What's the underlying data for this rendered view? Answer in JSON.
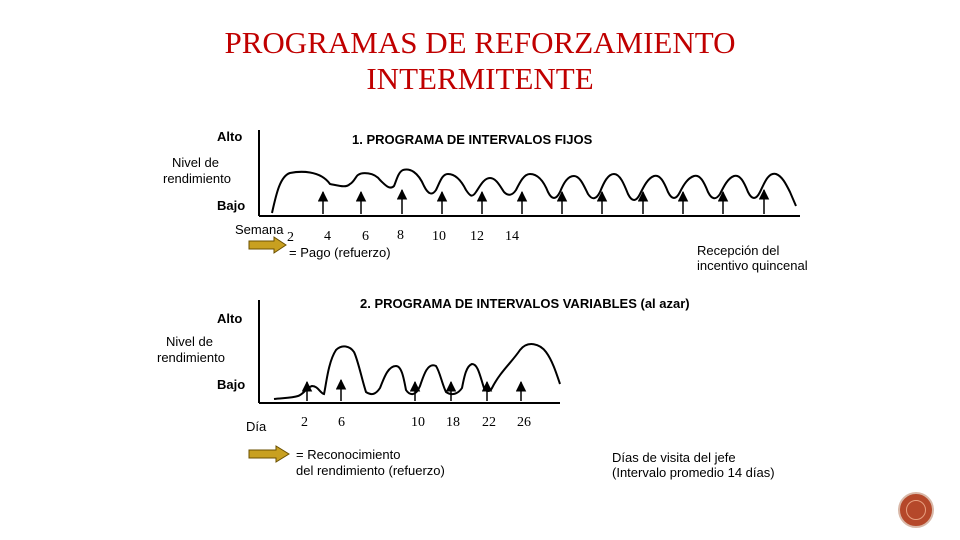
{
  "title": {
    "line1": "PROGRAMAS DE REFORZAMIENTO",
    "line2": "INTERMITENTE"
  },
  "fixed": {
    "heading": "1. PROGRAMA DE INTERVALOS FIJOS",
    "high_label": "Alto",
    "yaxis_label_1": "Nivel de",
    "yaxis_label_2": "rendimiento",
    "low_label": "Bajo",
    "xaxis_label": "Semana",
    "ticks": [
      "2",
      "4",
      "6",
      "8",
      "10",
      "12",
      "14"
    ],
    "legend_arrow_text": "= Pago (refuerzo)",
    "note_1": "Recepción del",
    "note_2": "incentivo quincenal"
  },
  "variable": {
    "heading": "2. PROGRAMA DE INTERVALOS VARIABLES (al azar)",
    "high_label": "Alto",
    "yaxis_label_1": "Nivel de",
    "yaxis_label_2": "rendimiento",
    "low_label": "Bajo",
    "xaxis_label": "Día",
    "ticks": [
      "2",
      "6",
      "10",
      "18",
      "22",
      "26"
    ],
    "legend_arrow_text_1": "= Reconocimiento",
    "legend_arrow_text_2": "del rendimiento (refuerzo)",
    "note_1": "Días de visita del jefe",
    "note_2": "(Intervalo promedio 14 días)"
  },
  "colors": {
    "title": "#c00000",
    "arrow_fill": "#c8a020",
    "badge": "#b5482a"
  }
}
